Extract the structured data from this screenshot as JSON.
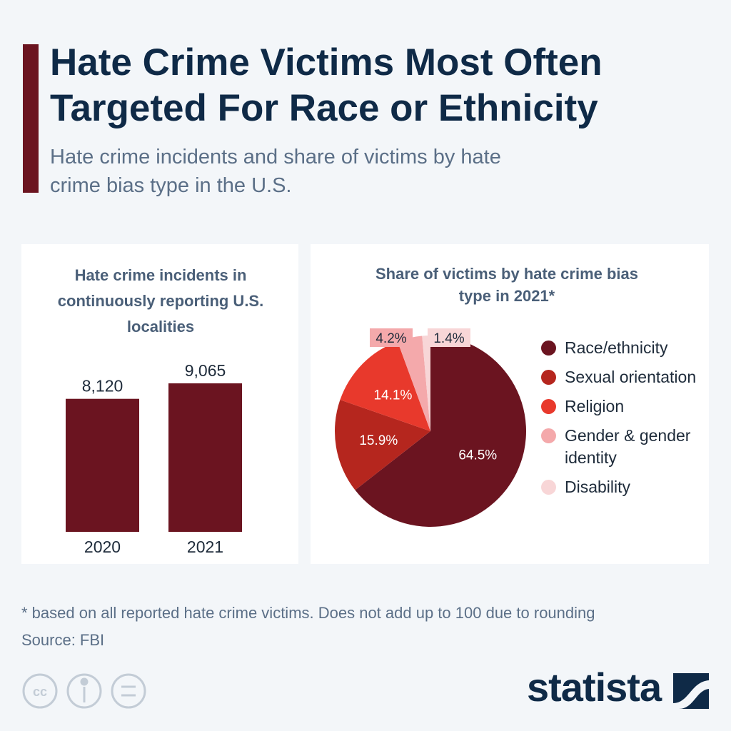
{
  "header": {
    "title": "Hate Crime Victims Most Often Targeted For Race or Ethnicity",
    "subtitle": "Hate crime incidents and share of victims by hate crime bias type in the U.S."
  },
  "chart_data": [
    {
      "type": "bar",
      "title": "Hate crime incidents in continuously reporting U.S. localities",
      "categories": [
        "2020",
        "2021"
      ],
      "values": [
        8120,
        9065
      ],
      "value_labels": [
        "8,120",
        "9,065"
      ],
      "color": "#6b1420"
    },
    {
      "type": "pie",
      "title": "Share of victims by hate crime bias type in 2021*",
      "categories": [
        "Race/ethnicity",
        "Sexual orientation",
        "Religion",
        "Gender & gender identity",
        "Disability"
      ],
      "values": [
        64.5,
        15.9,
        14.1,
        4.2,
        1.4
      ],
      "value_labels": [
        "64.5%",
        "15.9%",
        "14.1%",
        "4.2%",
        "1.4%"
      ],
      "colors": [
        "#6b1420",
        "#b5261e",
        "#e8392c",
        "#f4a9ab",
        "#f8d6d7"
      ],
      "legend": "right"
    }
  ],
  "footer": {
    "note": "* based on all reported hate crime victims. Does not add up to 100 due to rounding",
    "source": "Source: FBI",
    "brand": "statista"
  }
}
